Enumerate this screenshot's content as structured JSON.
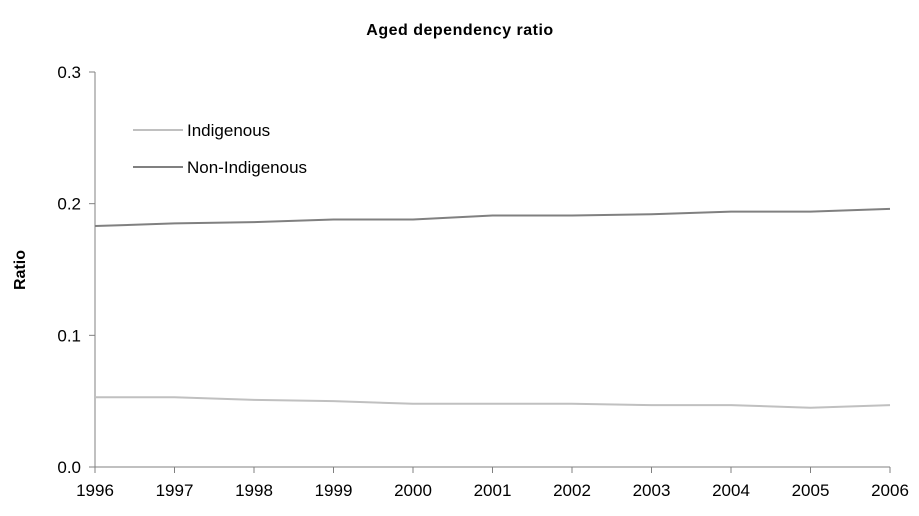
{
  "chart_data": {
    "type": "line",
    "title": "Aged dependency ratio",
    "xlabel": "",
    "ylabel": "Ratio",
    "x": [
      "1996",
      "1997",
      "1998",
      "1999",
      "2000",
      "2001",
      "2002",
      "2003",
      "2004",
      "2005",
      "2006"
    ],
    "yticks": [
      "0.0",
      "0.1",
      "0.2",
      "0.3"
    ],
    "ylim": [
      0,
      0.3
    ],
    "grid": false,
    "legend_position": "top-left",
    "series": [
      {
        "name": "Indigenous",
        "color": "#c0c0c0",
        "values": [
          0.053,
          0.053,
          0.051,
          0.05,
          0.048,
          0.048,
          0.048,
          0.047,
          0.047,
          0.045,
          0.047
        ]
      },
      {
        "name": "Non-Indigenous",
        "color": "#808080",
        "values": [
          0.183,
          0.185,
          0.186,
          0.188,
          0.188,
          0.191,
          0.191,
          0.192,
          0.194,
          0.194,
          0.196
        ]
      }
    ]
  }
}
